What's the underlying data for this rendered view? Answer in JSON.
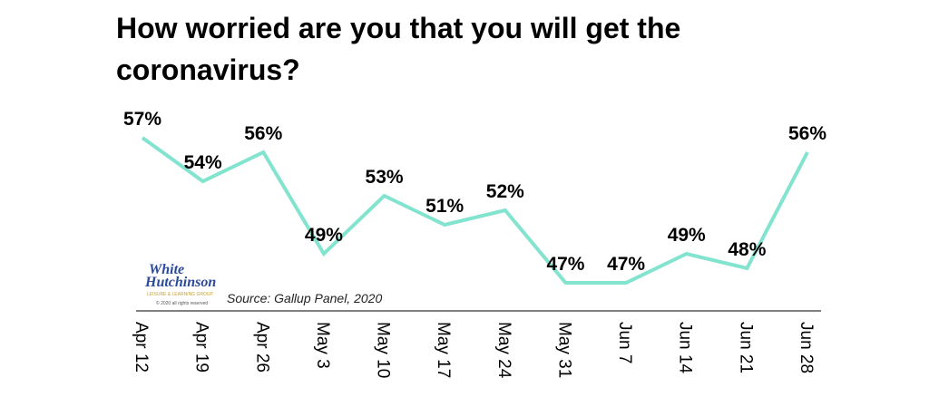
{
  "chart_data": {
    "type": "line",
    "title": "How worried are you that you will get the coronavirus?",
    "categories": [
      "Apr 12",
      "Apr 19",
      "Apr 26",
      "May 3",
      "May 10",
      "May 17",
      "May 24",
      "May 31",
      "Jun 7",
      "Jun 14",
      "Jun 21",
      "Jun 28"
    ],
    "values": [
      57,
      54,
      56,
      49,
      53,
      51,
      52,
      47,
      47,
      49,
      48,
      56
    ],
    "value_labels": [
      "57%",
      "54%",
      "56%",
      "49%",
      "53%",
      "51%",
      "52%",
      "47%",
      "47%",
      "49%",
      "48%",
      "56%"
    ],
    "color": "#82e3cf",
    "source": "Source: Gallup Panel, 2020",
    "logo": {
      "name_1": "White",
      "name_2": "Hutchinson",
      "tagline": "LEISURE & LEARNING GROUP",
      "rights": "© 2020 all rights reserved"
    }
  }
}
